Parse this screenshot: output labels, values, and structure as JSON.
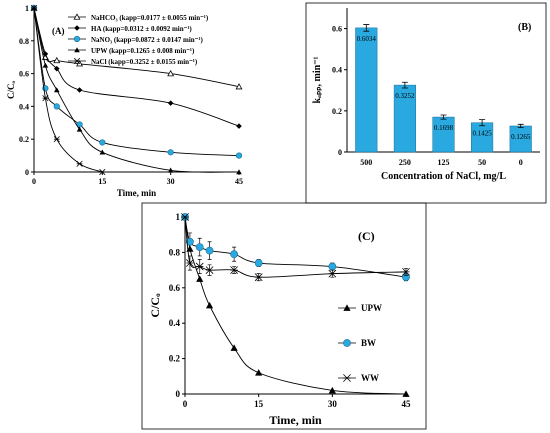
{
  "chart_data": [
    {
      "id": "A",
      "type": "line",
      "panel_label": "(A)",
      "xlabel": "Time, min",
      "ylabel": "C/Cₒ",
      "xlim": [
        0,
        45
      ],
      "ylim": [
        0,
        1
      ],
      "xticks": [
        0,
        15,
        30,
        45
      ],
      "yticks": [
        0,
        0.2,
        0.4,
        0.6,
        0.8,
        1
      ],
      "ytick_labels": [
        "0",
        "0.2",
        "0.4",
        "0.6",
        "0.8",
        "1"
      ],
      "legend_position": "top-right",
      "series": [
        {
          "name": "NaHCO₃ (kapp=0.0177 ± 0.0055 min⁻¹)",
          "marker": "triangle-open",
          "color": "#000000",
          "x": [
            0,
            2.5,
            5,
            10,
            30,
            45
          ],
          "y": [
            1,
            0.7,
            0.68,
            0.66,
            0.6,
            0.52
          ]
        },
        {
          "name": "HA (kapp=0.0312 ± 0.0092 min⁻¹)",
          "marker": "diamond",
          "color": "#000000",
          "x": [
            0,
            2.5,
            5,
            10,
            30,
            45
          ],
          "y": [
            1,
            0.72,
            0.63,
            0.5,
            0.42,
            0.28
          ]
        },
        {
          "name": "NaNO₃ (kapp=0.0872 ± 0.0147 min⁻¹)",
          "marker": "circle",
          "color": "#29a9e0",
          "x": [
            0,
            2.5,
            5,
            10,
            15,
            30,
            45
          ],
          "y": [
            1,
            0.51,
            0.4,
            0.29,
            0.18,
            0.12,
            0.1
          ]
        },
        {
          "name": "UPW (kapp=0.1265 ± 0.008 min⁻¹)",
          "marker": "triangle",
          "color": "#000000",
          "x": [
            0,
            2.5,
            5,
            10,
            15,
            30,
            45
          ],
          "y": [
            1,
            0.65,
            0.5,
            0.26,
            0.12,
            0.01,
            0.0
          ]
        },
        {
          "name": "NaCl (kapp=0.3252 ± 0.0155 min⁻¹)",
          "marker": "x",
          "color": "#000000",
          "x": [
            0,
            2.5,
            5,
            10,
            15
          ],
          "y": [
            1,
            0.45,
            0.2,
            0.05,
            0.0
          ]
        }
      ]
    },
    {
      "id": "B",
      "type": "bar",
      "panel_label": "(B)",
      "xlabel": "Concentration of NaCl, mg/L",
      "ylabel": "kₐₚₚ, min⁻¹",
      "categories": [
        "500",
        "250",
        "125",
        "50",
        "0"
      ],
      "values": [
        0.6034,
        0.3252,
        0.1698,
        0.1425,
        0.1265
      ],
      "value_labels": [
        "0.6034",
        "0.3252",
        "0.1698",
        "0.1425",
        "0.1265"
      ],
      "errors": [
        0.016,
        0.014,
        0.01,
        0.015,
        0.008
      ],
      "ylim": [
        0,
        0.7
      ],
      "yticks": [
        0,
        0.2,
        0.4,
        0.6
      ],
      "ytick_labels": [
        "0",
        "0.2",
        "0.4",
        "0.6"
      ],
      "bar_color": "#29a9e0"
    },
    {
      "id": "C",
      "type": "line",
      "panel_label": "(C)",
      "xlabel": "Time, min",
      "ylabel": "C/Cₒ",
      "xlim": [
        0,
        45
      ],
      "ylim": [
        0,
        1
      ],
      "xticks": [
        0,
        15,
        30,
        45
      ],
      "yticks": [
        0,
        0.2,
        0.4,
        0.6,
        0.8,
        1
      ],
      "ytick_labels": [
        "0",
        "0.2",
        "0.4",
        "0.6",
        "0.8",
        "1"
      ],
      "legend_position": "center-right",
      "series": [
        {
          "name": "UPW",
          "marker": "triangle",
          "color": "#000000",
          "x": [
            0,
            1,
            3,
            5,
            10,
            15,
            30,
            45
          ],
          "y": [
            1,
            0.82,
            0.65,
            0.5,
            0.26,
            0.12,
            0.02,
            0.0
          ]
        },
        {
          "name": "BW",
          "marker": "circle",
          "color": "#29a9e0",
          "x": [
            0,
            1,
            3,
            5,
            10,
            15,
            30,
            45
          ],
          "y": [
            1,
            0.86,
            0.83,
            0.81,
            0.79,
            0.74,
            0.72,
            0.66
          ],
          "errors": [
            0,
            0.05,
            0.05,
            0.05,
            0.04,
            0.02,
            0.02,
            0.02
          ]
        },
        {
          "name": "WW",
          "marker": "x",
          "color": "#000000",
          "x": [
            0,
            1,
            3,
            5,
            10,
            15,
            30,
            45
          ],
          "y": [
            1,
            0.74,
            0.72,
            0.7,
            0.7,
            0.66,
            0.68,
            0.69
          ],
          "errors": [
            0,
            0.04,
            0.04,
            0.03,
            0.02,
            0.02,
            0.02,
            0.02
          ]
        }
      ]
    }
  ]
}
